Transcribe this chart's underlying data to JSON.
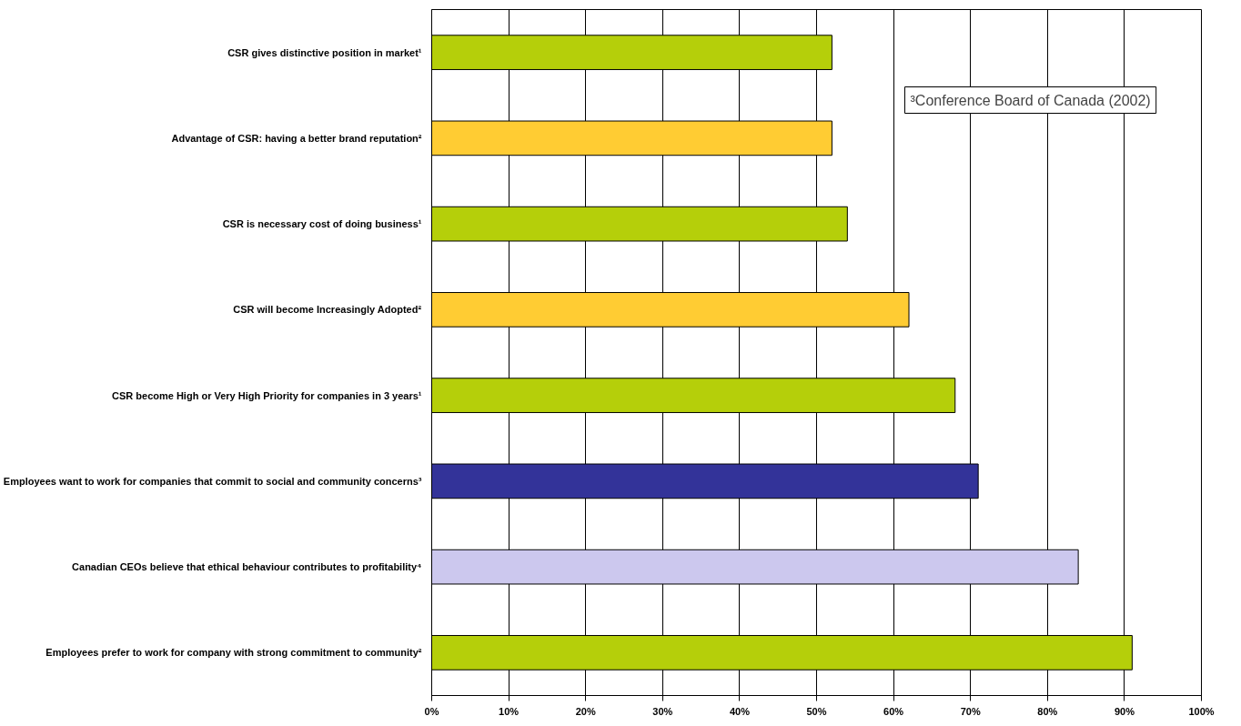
{
  "chart_data": {
    "type": "bar",
    "orientation": "horizontal",
    "categories": [
      "CSR gives distinctive position in market¹",
      "Advantage of CSR: having a better brand reputation²",
      "CSR is necessary cost of doing business¹",
      "CSR will become Increasingly Adopted²",
      "CSR become High or Very High Priority for companies in 3 years¹",
      "Employees want to work for companies that commit to social and community concerns³",
      "Canadian CEOs believe that ethical behaviour contributes to profitability⁴",
      "Employees prefer to work for company with strong commitment to community²"
    ],
    "values": [
      52,
      52,
      54,
      62,
      68,
      71,
      84,
      91
    ],
    "colors": [
      "#b5cf0a",
      "#ffcc33",
      "#b5cf0a",
      "#ffcc33",
      "#b5cf0a",
      "#333399",
      "#ccc8ee",
      "#b5cf0a"
    ],
    "xlim": [
      0,
      100
    ],
    "xticks": [
      {
        "value": 0,
        "label": "0%"
      },
      {
        "value": 10,
        "label": "10%"
      },
      {
        "value": 20,
        "label": "20%"
      },
      {
        "value": 30,
        "label": "30%"
      },
      {
        "value": 40,
        "label": "40%"
      },
      {
        "value": 50,
        "label": "50%"
      },
      {
        "value": 60,
        "label": "60%"
      },
      {
        "value": 70,
        "label": "70%"
      },
      {
        "value": 80,
        "label": "80%"
      },
      {
        "value": 90,
        "label": "90%"
      },
      {
        "value": 100,
        "label": "100%"
      }
    ],
    "grid": "x",
    "annotations": [
      "³Conference Board of Canada (2002)"
    ]
  }
}
